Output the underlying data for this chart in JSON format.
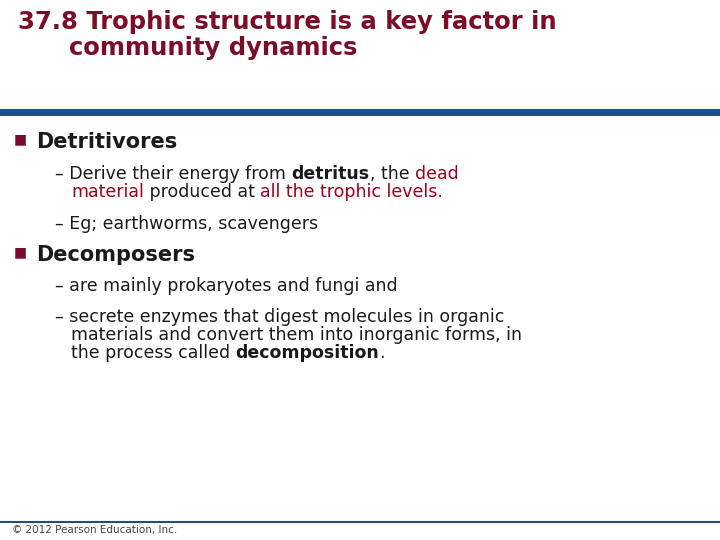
{
  "title_line1": "37.8 Trophic structure is a key factor in",
  "title_line2": "      community dynamics",
  "title_color": "#7B0D2A",
  "title_fontsize": 17.5,
  "background_color": "#FFFFFF",
  "header_line_color": "#1A4F8A",
  "bullet_color": "#7B0D2A",
  "bullet1_label": "Detritivores",
  "bullet_fontsize": 15,
  "sub_fontsize": 12.5,
  "footer": "© 2012 Pearson Education, Inc.",
  "footer_fontsize": 7.5,
  "red_color": "#A0001C",
  "dark_color": "#1a1a1a"
}
